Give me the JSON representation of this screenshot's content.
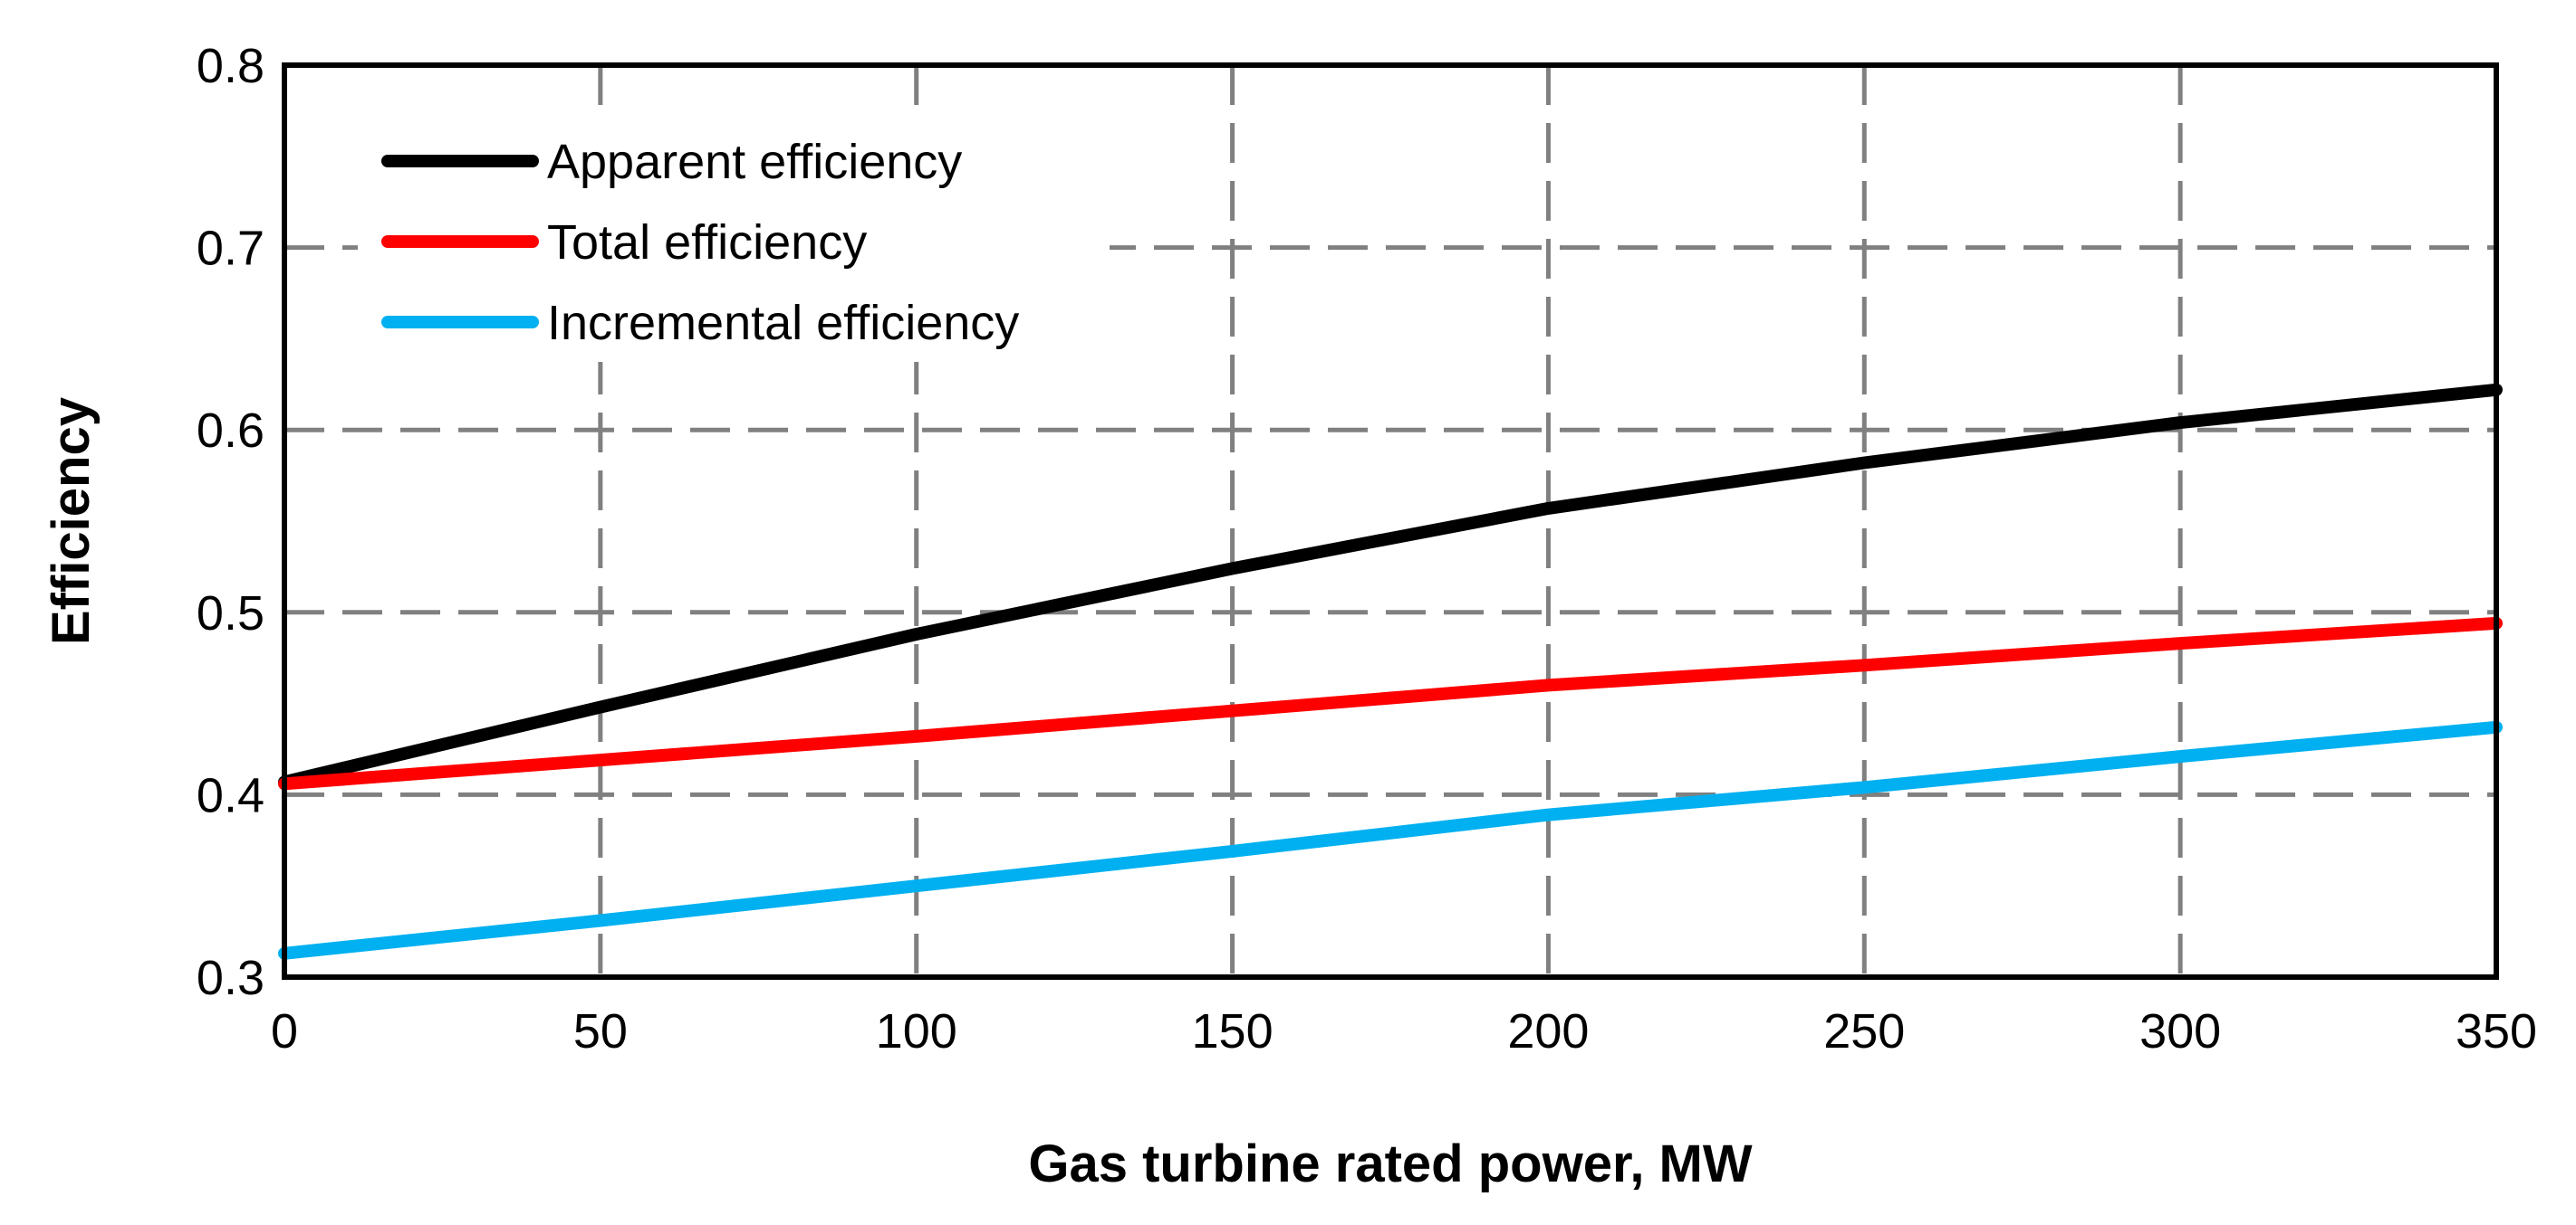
{
  "chart_data": {
    "type": "line",
    "title": "",
    "xlabel": "Gas turbine rated power, MW",
    "ylabel": "Efficiency",
    "xlim": [
      0,
      350
    ],
    "ylim": [
      0.3,
      0.8
    ],
    "xticks": [
      0,
      50,
      100,
      150,
      200,
      250,
      300,
      350
    ],
    "xtick_labels": [
      "0",
      "50",
      "100",
      "150",
      "200",
      "250",
      "300",
      "350"
    ],
    "yticks": [
      0.3,
      0.4,
      0.5,
      0.6,
      0.7,
      0.8
    ],
    "ytick_labels": [
      "0.3",
      "0.4",
      "0.5",
      "0.6",
      "0.7",
      "0.8"
    ],
    "grid": true,
    "legend_position": "top-left",
    "series": [
      {
        "name": "Apparent efficiency",
        "color": "#000000",
        "x": [
          0,
          50,
          100,
          150,
          200,
          250,
          300,
          350
        ],
        "values": [
          0.407,
          0.448,
          0.488,
          0.524,
          0.557,
          0.582,
          0.604,
          0.622
        ]
      },
      {
        "name": "Total efficiency",
        "color": "#ff0000",
        "x": [
          0,
          50,
          100,
          150,
          200,
          250,
          300,
          350
        ],
        "values": [
          0.406,
          0.419,
          0.432,
          0.446,
          0.46,
          0.471,
          0.483,
          0.494
        ]
      },
      {
        "name": "Incremental efficiency",
        "color": "#00b0f0",
        "x": [
          0,
          50,
          100,
          150,
          200,
          250,
          300,
          350
        ],
        "values": [
          0.313,
          0.331,
          0.35,
          0.369,
          0.389,
          0.404,
          0.421,
          0.437
        ]
      }
    ]
  }
}
